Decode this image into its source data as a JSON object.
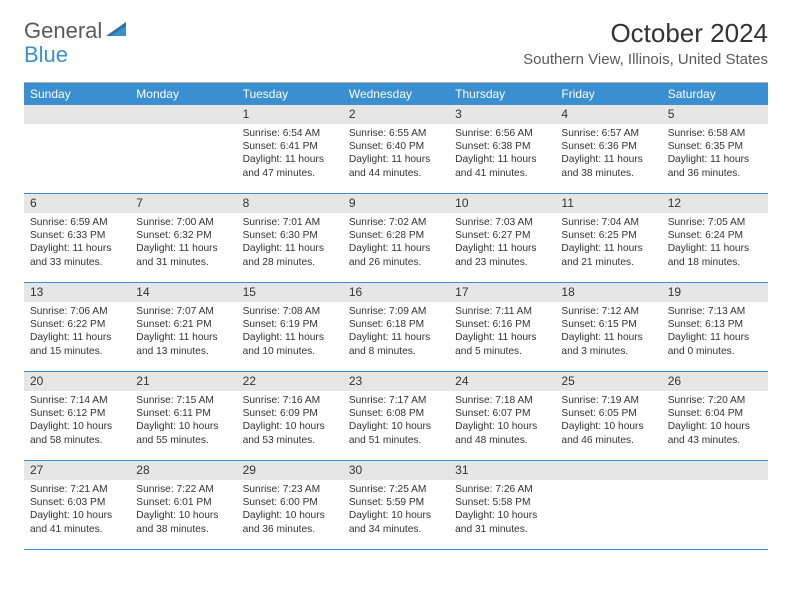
{
  "brand": {
    "part1": "General",
    "part2": "Blue"
  },
  "title": "October 2024",
  "subtitle": "Southern View, Illinois, United States",
  "colors": {
    "header_bg": "#3a8fd0",
    "header_text": "#ffffff",
    "daynum_bg": "#e6e6e6",
    "border": "#3a8fd0",
    "text": "#333333",
    "logo_gray": "#5a5a5a",
    "logo_blue": "#3a8fd0",
    "page_bg": "#ffffff"
  },
  "day_names": [
    "Sunday",
    "Monday",
    "Tuesday",
    "Wednesday",
    "Thursday",
    "Friday",
    "Saturday"
  ],
  "weeks": [
    [
      null,
      null,
      {
        "n": "1",
        "sr": "6:54 AM",
        "ss": "6:41 PM",
        "dl": "11 hours and 47 minutes."
      },
      {
        "n": "2",
        "sr": "6:55 AM",
        "ss": "6:40 PM",
        "dl": "11 hours and 44 minutes."
      },
      {
        "n": "3",
        "sr": "6:56 AM",
        "ss": "6:38 PM",
        "dl": "11 hours and 41 minutes."
      },
      {
        "n": "4",
        "sr": "6:57 AM",
        "ss": "6:36 PM",
        "dl": "11 hours and 38 minutes."
      },
      {
        "n": "5",
        "sr": "6:58 AM",
        "ss": "6:35 PM",
        "dl": "11 hours and 36 minutes."
      }
    ],
    [
      {
        "n": "6",
        "sr": "6:59 AM",
        "ss": "6:33 PM",
        "dl": "11 hours and 33 minutes."
      },
      {
        "n": "7",
        "sr": "7:00 AM",
        "ss": "6:32 PM",
        "dl": "11 hours and 31 minutes."
      },
      {
        "n": "8",
        "sr": "7:01 AM",
        "ss": "6:30 PM",
        "dl": "11 hours and 28 minutes."
      },
      {
        "n": "9",
        "sr": "7:02 AM",
        "ss": "6:28 PM",
        "dl": "11 hours and 26 minutes."
      },
      {
        "n": "10",
        "sr": "7:03 AM",
        "ss": "6:27 PM",
        "dl": "11 hours and 23 minutes."
      },
      {
        "n": "11",
        "sr": "7:04 AM",
        "ss": "6:25 PM",
        "dl": "11 hours and 21 minutes."
      },
      {
        "n": "12",
        "sr": "7:05 AM",
        "ss": "6:24 PM",
        "dl": "11 hours and 18 minutes."
      }
    ],
    [
      {
        "n": "13",
        "sr": "7:06 AM",
        "ss": "6:22 PM",
        "dl": "11 hours and 15 minutes."
      },
      {
        "n": "14",
        "sr": "7:07 AM",
        "ss": "6:21 PM",
        "dl": "11 hours and 13 minutes."
      },
      {
        "n": "15",
        "sr": "7:08 AM",
        "ss": "6:19 PM",
        "dl": "11 hours and 10 minutes."
      },
      {
        "n": "16",
        "sr": "7:09 AM",
        "ss": "6:18 PM",
        "dl": "11 hours and 8 minutes."
      },
      {
        "n": "17",
        "sr": "7:11 AM",
        "ss": "6:16 PM",
        "dl": "11 hours and 5 minutes."
      },
      {
        "n": "18",
        "sr": "7:12 AM",
        "ss": "6:15 PM",
        "dl": "11 hours and 3 minutes."
      },
      {
        "n": "19",
        "sr": "7:13 AM",
        "ss": "6:13 PM",
        "dl": "11 hours and 0 minutes."
      }
    ],
    [
      {
        "n": "20",
        "sr": "7:14 AM",
        "ss": "6:12 PM",
        "dl": "10 hours and 58 minutes."
      },
      {
        "n": "21",
        "sr": "7:15 AM",
        "ss": "6:11 PM",
        "dl": "10 hours and 55 minutes."
      },
      {
        "n": "22",
        "sr": "7:16 AM",
        "ss": "6:09 PM",
        "dl": "10 hours and 53 minutes."
      },
      {
        "n": "23",
        "sr": "7:17 AM",
        "ss": "6:08 PM",
        "dl": "10 hours and 51 minutes."
      },
      {
        "n": "24",
        "sr": "7:18 AM",
        "ss": "6:07 PM",
        "dl": "10 hours and 48 minutes."
      },
      {
        "n": "25",
        "sr": "7:19 AM",
        "ss": "6:05 PM",
        "dl": "10 hours and 46 minutes."
      },
      {
        "n": "26",
        "sr": "7:20 AM",
        "ss": "6:04 PM",
        "dl": "10 hours and 43 minutes."
      }
    ],
    [
      {
        "n": "27",
        "sr": "7:21 AM",
        "ss": "6:03 PM",
        "dl": "10 hours and 41 minutes."
      },
      {
        "n": "28",
        "sr": "7:22 AM",
        "ss": "6:01 PM",
        "dl": "10 hours and 38 minutes."
      },
      {
        "n": "29",
        "sr": "7:23 AM",
        "ss": "6:00 PM",
        "dl": "10 hours and 36 minutes."
      },
      {
        "n": "30",
        "sr": "7:25 AM",
        "ss": "5:59 PM",
        "dl": "10 hours and 34 minutes."
      },
      {
        "n": "31",
        "sr": "7:26 AM",
        "ss": "5:58 PM",
        "dl": "10 hours and 31 minutes."
      },
      null,
      null
    ]
  ],
  "labels": {
    "sunrise": "Sunrise:",
    "sunset": "Sunset:",
    "daylight": "Daylight:"
  }
}
